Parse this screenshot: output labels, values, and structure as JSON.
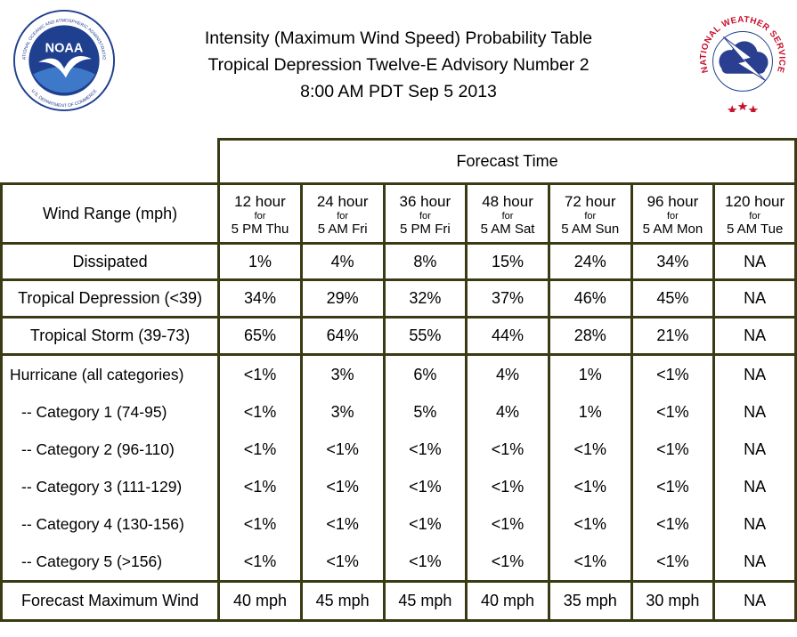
{
  "title": {
    "line1": "Intensity (Maximum Wind Speed) Probability Table",
    "line2": "Tropical Depression Twelve-E Advisory Number 2",
    "line3": "8:00 AM PDT Sep 5 2013"
  },
  "logos": {
    "noaa_text": "NOAA",
    "noaa_ring": "NATIONAL OCEANIC AND ATMOSPHERIC ADMINISTRATION",
    "noaa_ring_bottom": "U.S. DEPARTMENT OF COMMERCE",
    "nws_ring": "NATIONAL WEATHER SERVICE"
  },
  "table": {
    "forecast_time_label": "Forecast Time",
    "wind_range_label": "Wind Range (mph)",
    "periods": [
      {
        "hour": "12 hour",
        "for": "for",
        "time": "5 PM Thu"
      },
      {
        "hour": "24 hour",
        "for": "for",
        "time": "5 AM Fri"
      },
      {
        "hour": "36 hour",
        "for": "for",
        "time": "5 PM Fri"
      },
      {
        "hour": "48 hour",
        "for": "for",
        "time": "5 AM Sat"
      },
      {
        "hour": "72 hour",
        "for": "for",
        "time": "5 AM Sun"
      },
      {
        "hour": "96 hour",
        "for": "for",
        "time": "5 AM Mon"
      },
      {
        "hour": "120 hour",
        "for": "for",
        "time": "5 AM Tue"
      }
    ],
    "rows": [
      {
        "label": "Dissipated",
        "values": [
          "1%",
          "4%",
          "8%",
          "15%",
          "24%",
          "34%",
          "NA"
        ]
      },
      {
        "label": "Tropical Depression (<39)",
        "values": [
          "34%",
          "29%",
          "32%",
          "37%",
          "46%",
          "45%",
          "NA"
        ]
      },
      {
        "label": "Tropical Storm (39-73)",
        "values": [
          "65%",
          "64%",
          "55%",
          "44%",
          "28%",
          "21%",
          "NA"
        ]
      }
    ],
    "hurricane_group": [
      {
        "label": "Hurricane (all categories)",
        "values": [
          "<1%",
          "3%",
          "6%",
          "4%",
          "1%",
          "<1%",
          "NA"
        ]
      },
      {
        "label": "-- Category 1 (74-95)",
        "values": [
          "<1%",
          "3%",
          "5%",
          "4%",
          "1%",
          "<1%",
          "NA"
        ]
      },
      {
        "label": "-- Category 2 (96-110)",
        "values": [
          "<1%",
          "<1%",
          "<1%",
          "<1%",
          "<1%",
          "<1%",
          "NA"
        ]
      },
      {
        "label": "-- Category 3 (111-129)",
        "values": [
          "<1%",
          "<1%",
          "<1%",
          "<1%",
          "<1%",
          "<1%",
          "NA"
        ]
      },
      {
        "label": "-- Category 4 (130-156)",
        "values": [
          "<1%",
          "<1%",
          "<1%",
          "<1%",
          "<1%",
          "<1%",
          "NA"
        ]
      },
      {
        "label": "-- Category 5 (>156)",
        "values": [
          "<1%",
          "<1%",
          "<1%",
          "<1%",
          "<1%",
          "<1%",
          "NA"
        ]
      }
    ],
    "max_wind": {
      "label": "Forecast Maximum Wind",
      "values": [
        "40 mph",
        "45 mph",
        "45 mph",
        "40 mph",
        "35 mph",
        "30 mph",
        "NA"
      ]
    }
  },
  "colors": {
    "border": "#3a3a14",
    "noaa_blue": "#1f3f8f",
    "nws_red": "#c8102e"
  }
}
